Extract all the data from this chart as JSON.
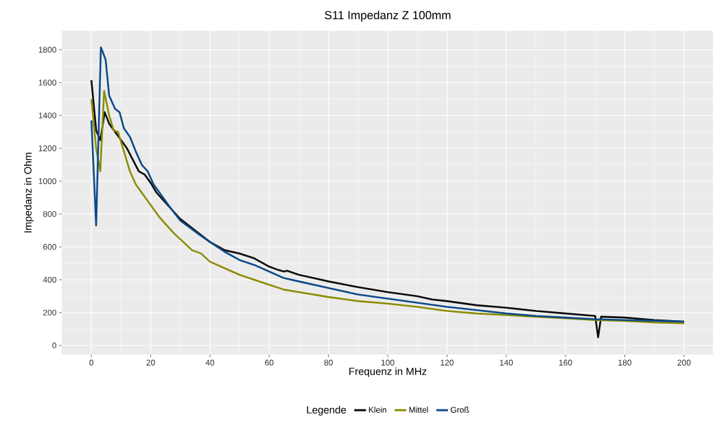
{
  "chart_data": {
    "type": "line",
    "title": "S11 Impedanz Z 100mm",
    "xlabel": "Frequenz in MHz",
    "ylabel": "Impedanz in Ohm",
    "legend_title": "Legende",
    "legend": "bottom",
    "grid": true,
    "xlim": [
      -10,
      210
    ],
    "ylim": [
      -55,
      1915
    ],
    "xticks": [
      0,
      20,
      40,
      60,
      80,
      100,
      120,
      140,
      160,
      180,
      200
    ],
    "yticks": [
      0,
      200,
      400,
      600,
      800,
      1000,
      1200,
      1400,
      1600,
      1800
    ],
    "series": [
      {
        "name": "Klein",
        "color": "#0a0a0a",
        "x": [
          0,
          1.6,
          3,
          4.5,
          6,
          8,
          10,
          12,
          14,
          16,
          18,
          20,
          22,
          24,
          26,
          28,
          30,
          35,
          40,
          45,
          50,
          55,
          60,
          63,
          65,
          66,
          70,
          75,
          80,
          90,
          100,
          110,
          115,
          120,
          130,
          140,
          150,
          160,
          170,
          171,
          172,
          180,
          190,
          200
        ],
        "values": [
          1615,
          1310,
          1250,
          1420,
          1350,
          1300,
          1250,
          1200,
          1130,
          1060,
          1040,
          990,
          930,
          890,
          850,
          810,
          770,
          700,
          630,
          580,
          560,
          530,
          480,
          460,
          450,
          455,
          430,
          410,
          390,
          355,
          325,
          300,
          280,
          270,
          245,
          230,
          210,
          195,
          180,
          50,
          175,
          170,
          155,
          145
        ]
      },
      {
        "name": "Mittel",
        "color": "#8c8c00",
        "x": [
          0,
          1.6,
          3,
          4.3,
          6,
          7.5,
          9,
          11,
          13,
          15,
          17,
          19,
          21,
          23,
          25,
          28,
          31,
          34,
          37,
          40,
          45,
          50,
          55,
          60,
          65,
          70,
          80,
          90,
          100,
          110,
          120,
          130,
          140,
          150,
          160,
          170,
          180,
          190,
          200
        ],
        "values": [
          1500,
          1200,
          1060,
          1550,
          1400,
          1310,
          1300,
          1180,
          1060,
          980,
          930,
          880,
          830,
          780,
          740,
          680,
          630,
          580,
          560,
          510,
          470,
          430,
          400,
          370,
          340,
          325,
          295,
          270,
          255,
          235,
          210,
          195,
          185,
          175,
          165,
          155,
          150,
          140,
          135
        ]
      },
      {
        "name": "Groß",
        "color": "#0d4a8a",
        "x": [
          0,
          1.6,
          3.2,
          4.8,
          6,
          8,
          9.5,
          11,
          13,
          15,
          17,
          19,
          21,
          23,
          25,
          27,
          30,
          33,
          36,
          40,
          45,
          50,
          55,
          60,
          65,
          70,
          80,
          90,
          100,
          110,
          120,
          130,
          140,
          150,
          160,
          170,
          180,
          190,
          200
        ],
        "values": [
          1370,
          730,
          1815,
          1740,
          1520,
          1440,
          1420,
          1320,
          1270,
          1180,
          1100,
          1060,
          980,
          930,
          880,
          830,
          760,
          720,
          680,
          630,
          570,
          520,
          490,
          450,
          410,
          390,
          350,
          310,
          285,
          260,
          235,
          215,
          195,
          180,
          170,
          160,
          155,
          150,
          145
        ]
      }
    ]
  }
}
